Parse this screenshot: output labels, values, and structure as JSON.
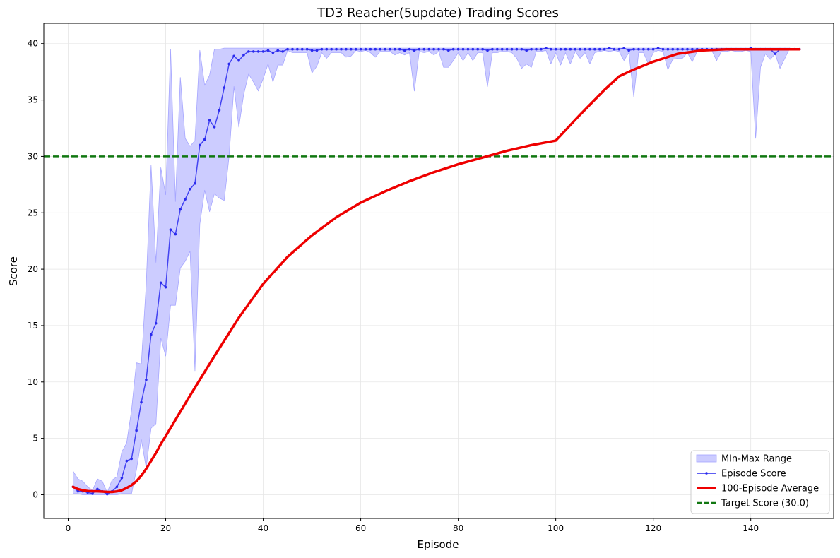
{
  "chart_data": {
    "type": "line",
    "title": "TD3 Reacher(5update) Trading Scores",
    "xlabel": "Episode",
    "ylabel": "Score",
    "xlim": [
      -5,
      157
    ],
    "ylim": [
      -2.1,
      41.8
    ],
    "xticks": [
      0,
      20,
      40,
      60,
      80,
      100,
      120,
      140
    ],
    "yticks": [
      0,
      5,
      10,
      15,
      20,
      25,
      30,
      35,
      40
    ],
    "grid": true,
    "legend_position": "lower right",
    "target_score": 30.0,
    "colors": {
      "range_fill": "#ccccff",
      "range_edge": "#a6a6ff",
      "episode": "#2a2aee",
      "average": "#ee0000",
      "target": "#117711"
    },
    "legend": [
      {
        "label": "Min-Max Range",
        "kind": "patch",
        "color": "#ccccff"
      },
      {
        "label": "Episode Score",
        "kind": "marker-line",
        "color": "#2a2aee"
      },
      {
        "label": "100-Episode Average",
        "kind": "line",
        "color": "#ee0000"
      },
      {
        "label": "Target Score (30.0)",
        "kind": "dashed",
        "color": "#117711"
      }
    ],
    "episodes_start": 1,
    "episode_scores": [
      0.7,
      0.3,
      0.3,
      0.2,
      0.1,
      0.5,
      0.3,
      0.05,
      0.3,
      0.7,
      1.5,
      3.0,
      3.2,
      5.7,
      8.2,
      10.2,
      14.2,
      15.2,
      18.8,
      18.4,
      23.5,
      23.1,
      25.3,
      26.2,
      27.1,
      27.6,
      31.0,
      31.5,
      33.2,
      32.6,
      34.1,
      36.1,
      38.2,
      38.9,
      38.5,
      39.0,
      39.3,
      39.3,
      39.3,
      39.3,
      39.4,
      39.2,
      39.4,
      39.3,
      39.5,
      39.5,
      39.5,
      39.5,
      39.5,
      39.4,
      39.4,
      39.5,
      39.5,
      39.5,
      39.5,
      39.5,
      39.5,
      39.5,
      39.5,
      39.5,
      39.5,
      39.5,
      39.5,
      39.5,
      39.5,
      39.5,
      39.5,
      39.5,
      39.4,
      39.5,
      39.4,
      39.5,
      39.5,
      39.5,
      39.5,
      39.5,
      39.5,
      39.4,
      39.5,
      39.5,
      39.5,
      39.5,
      39.5,
      39.5,
      39.5,
      39.4,
      39.5,
      39.5,
      39.5,
      39.5,
      39.5,
      39.5,
      39.5,
      39.4,
      39.5,
      39.5,
      39.5,
      39.6,
      39.5,
      39.5,
      39.5,
      39.5,
      39.5,
      39.5,
      39.5,
      39.5,
      39.5,
      39.5,
      39.5,
      39.5,
      39.6,
      39.5,
      39.5,
      39.6,
      39.4,
      39.5,
      39.5,
      39.5,
      39.5,
      39.5,
      39.6,
      39.5,
      39.5,
      39.5,
      39.5,
      39.5,
      39.5,
      39.5,
      39.5,
      39.5,
      39.5,
      39.5,
      39.5,
      39.5,
      39.5,
      39.5,
      39.5,
      39.5,
      39.5,
      39.6,
      39.5,
      39.5,
      39.5,
      39.5,
      39.1,
      39.5,
      39.5,
      39.5,
      39.5,
      39.5
    ],
    "range_min": [
      0.1,
      0.1,
      0.0,
      0.0,
      0.0,
      0.0,
      0.0,
      0.0,
      0.0,
      0.0,
      0.1,
      0.1,
      0.1,
      2.2,
      4.9,
      2.4,
      5.9,
      6.3,
      13.9,
      12.3,
      16.8,
      16.8,
      20.1,
      20.7,
      21.6,
      11.0,
      24.0,
      27.0,
      25.1,
      26.7,
      26.3,
      26.1,
      30.0,
      36.2,
      32.6,
      35.5,
      37.3,
      36.6,
      35.8,
      36.9,
      38.2,
      36.6,
      38.1,
      38.1,
      39.4,
      39.2,
      39.2,
      39.2,
      39.2,
      37.4,
      38.0,
      39.2,
      38.7,
      39.2,
      39.2,
      39.2,
      38.8,
      38.9,
      39.4,
      39.3,
      39.4,
      39.2,
      38.8,
      39.3,
      39.3,
      39.3,
      39.0,
      39.2,
      39.0,
      39.2,
      35.8,
      39.3,
      39.2,
      39.3,
      39.0,
      39.3,
      37.9,
      37.9,
      38.5,
      39.2,
      38.5,
      39.2,
      38.5,
      39.2,
      39.2,
      36.2,
      39.2,
      39.2,
      39.3,
      39.3,
      39.2,
      38.7,
      37.8,
      38.2,
      37.9,
      39.3,
      39.3,
      39.4,
      38.2,
      39.2,
      38.1,
      39.2,
      38.2,
      39.3,
      38.7,
      39.2,
      38.2,
      39.2,
      39.3,
      39.4,
      39.3,
      39.4,
      39.3,
      38.5,
      39.2,
      35.3,
      39.2,
      39.2,
      38.2,
      39.2,
      39.4,
      39.3,
      37.7,
      38.6,
      38.7,
      38.7,
      39.2,
      38.4,
      39.3,
      39.4,
      39.4,
      39.4,
      38.5,
      39.3,
      39.3,
      39.4,
      39.3,
      39.3,
      39.4,
      39.3,
      31.6,
      37.9,
      39.1,
      38.6,
      39.1,
      37.8
    ],
    "range_max": [
      2.1,
      1.4,
      1.2,
      0.7,
      0.4,
      1.4,
      1.2,
      0.2,
      1.3,
      1.6,
      3.8,
      4.6,
      7.5,
      11.7,
      11.6,
      18.6,
      29.2,
      20.6,
      29.0,
      26.6,
      39.5,
      26.0,
      37.0,
      31.6,
      30.9,
      31.4,
      39.4,
      36.3,
      37.2,
      39.5,
      39.5,
      39.6,
      39.6,
      39.6,
      39.6,
      39.6,
      39.6,
      39.6,
      39.6,
      39.6,
      39.6,
      39.6,
      39.6,
      39.6,
      39.6,
      39.6,
      39.6,
      39.6,
      39.6,
      39.6,
      39.6,
      39.6,
      39.6,
      39.6,
      39.6,
      39.6,
      39.6,
      39.6,
      39.6,
      39.6,
      39.6,
      39.6,
      39.6,
      39.6,
      39.6,
      39.6,
      39.6,
      39.6,
      39.6,
      39.6,
      39.6,
      39.6,
      39.6,
      39.6,
      39.6,
      39.6,
      39.6,
      39.6,
      39.6,
      39.6,
      39.6,
      39.6,
      39.6,
      39.6,
      39.6,
      39.6,
      39.6,
      39.6,
      39.6,
      39.6,
      39.6,
      39.6,
      39.6,
      39.6,
      39.6,
      39.6,
      39.6,
      39.6,
      39.6,
      39.6,
      39.6,
      39.6,
      39.6,
      39.6,
      39.6,
      39.6,
      39.6,
      39.6,
      39.6,
      39.6,
      39.6,
      39.6,
      39.6,
      39.6,
      39.6,
      39.6,
      39.6,
      39.6,
      39.6,
      39.6,
      39.6,
      39.6,
      39.6,
      39.6,
      39.6,
      39.6,
      39.6,
      39.6,
      39.6,
      39.6,
      39.6,
      39.6,
      39.6,
      39.6,
      39.6,
      39.6,
      39.6,
      39.6,
      39.6,
      39.6,
      39.6,
      39.6,
      39.6,
      39.6,
      39.6,
      39.6,
      39.6,
      39.6
    ],
    "average_points": [
      [
        1,
        0.7
      ],
      [
        2,
        0.5
      ],
      [
        3,
        0.4
      ],
      [
        4,
        0.33
      ],
      [
        5,
        0.3
      ],
      [
        6,
        0.3
      ],
      [
        7,
        0.28
      ],
      [
        8,
        0.26
      ],
      [
        9,
        0.25
      ],
      [
        10,
        0.3
      ],
      [
        11,
        0.4
      ],
      [
        12,
        0.6
      ],
      [
        13,
        0.85
      ],
      [
        14,
        1.2
      ],
      [
        15,
        1.7
      ],
      [
        16,
        2.3
      ],
      [
        17,
        3.0
      ],
      [
        18,
        3.7
      ],
      [
        19,
        4.5
      ],
      [
        20,
        5.2
      ],
      [
        25,
        8.8
      ],
      [
        30,
        12.3
      ],
      [
        35,
        15.7
      ],
      [
        40,
        18.7
      ],
      [
        45,
        21.1
      ],
      [
        50,
        23.0
      ],
      [
        55,
        24.6
      ],
      [
        60,
        25.9
      ],
      [
        65,
        26.9
      ],
      [
        70,
        27.8
      ],
      [
        75,
        28.6
      ],
      [
        80,
        29.3
      ],
      [
        85,
        29.9
      ],
      [
        90,
        30.5
      ],
      [
        95,
        31.0
      ],
      [
        100,
        31.4
      ],
      [
        105,
        33.7
      ],
      [
        110,
        35.9
      ],
      [
        113,
        37.1
      ],
      [
        116,
        37.7
      ],
      [
        120,
        38.4
      ],
      [
        125,
        39.1
      ],
      [
        130,
        39.4
      ],
      [
        135,
        39.5
      ],
      [
        140,
        39.5
      ],
      [
        145,
        39.5
      ],
      [
        150,
        39.5
      ]
    ]
  }
}
